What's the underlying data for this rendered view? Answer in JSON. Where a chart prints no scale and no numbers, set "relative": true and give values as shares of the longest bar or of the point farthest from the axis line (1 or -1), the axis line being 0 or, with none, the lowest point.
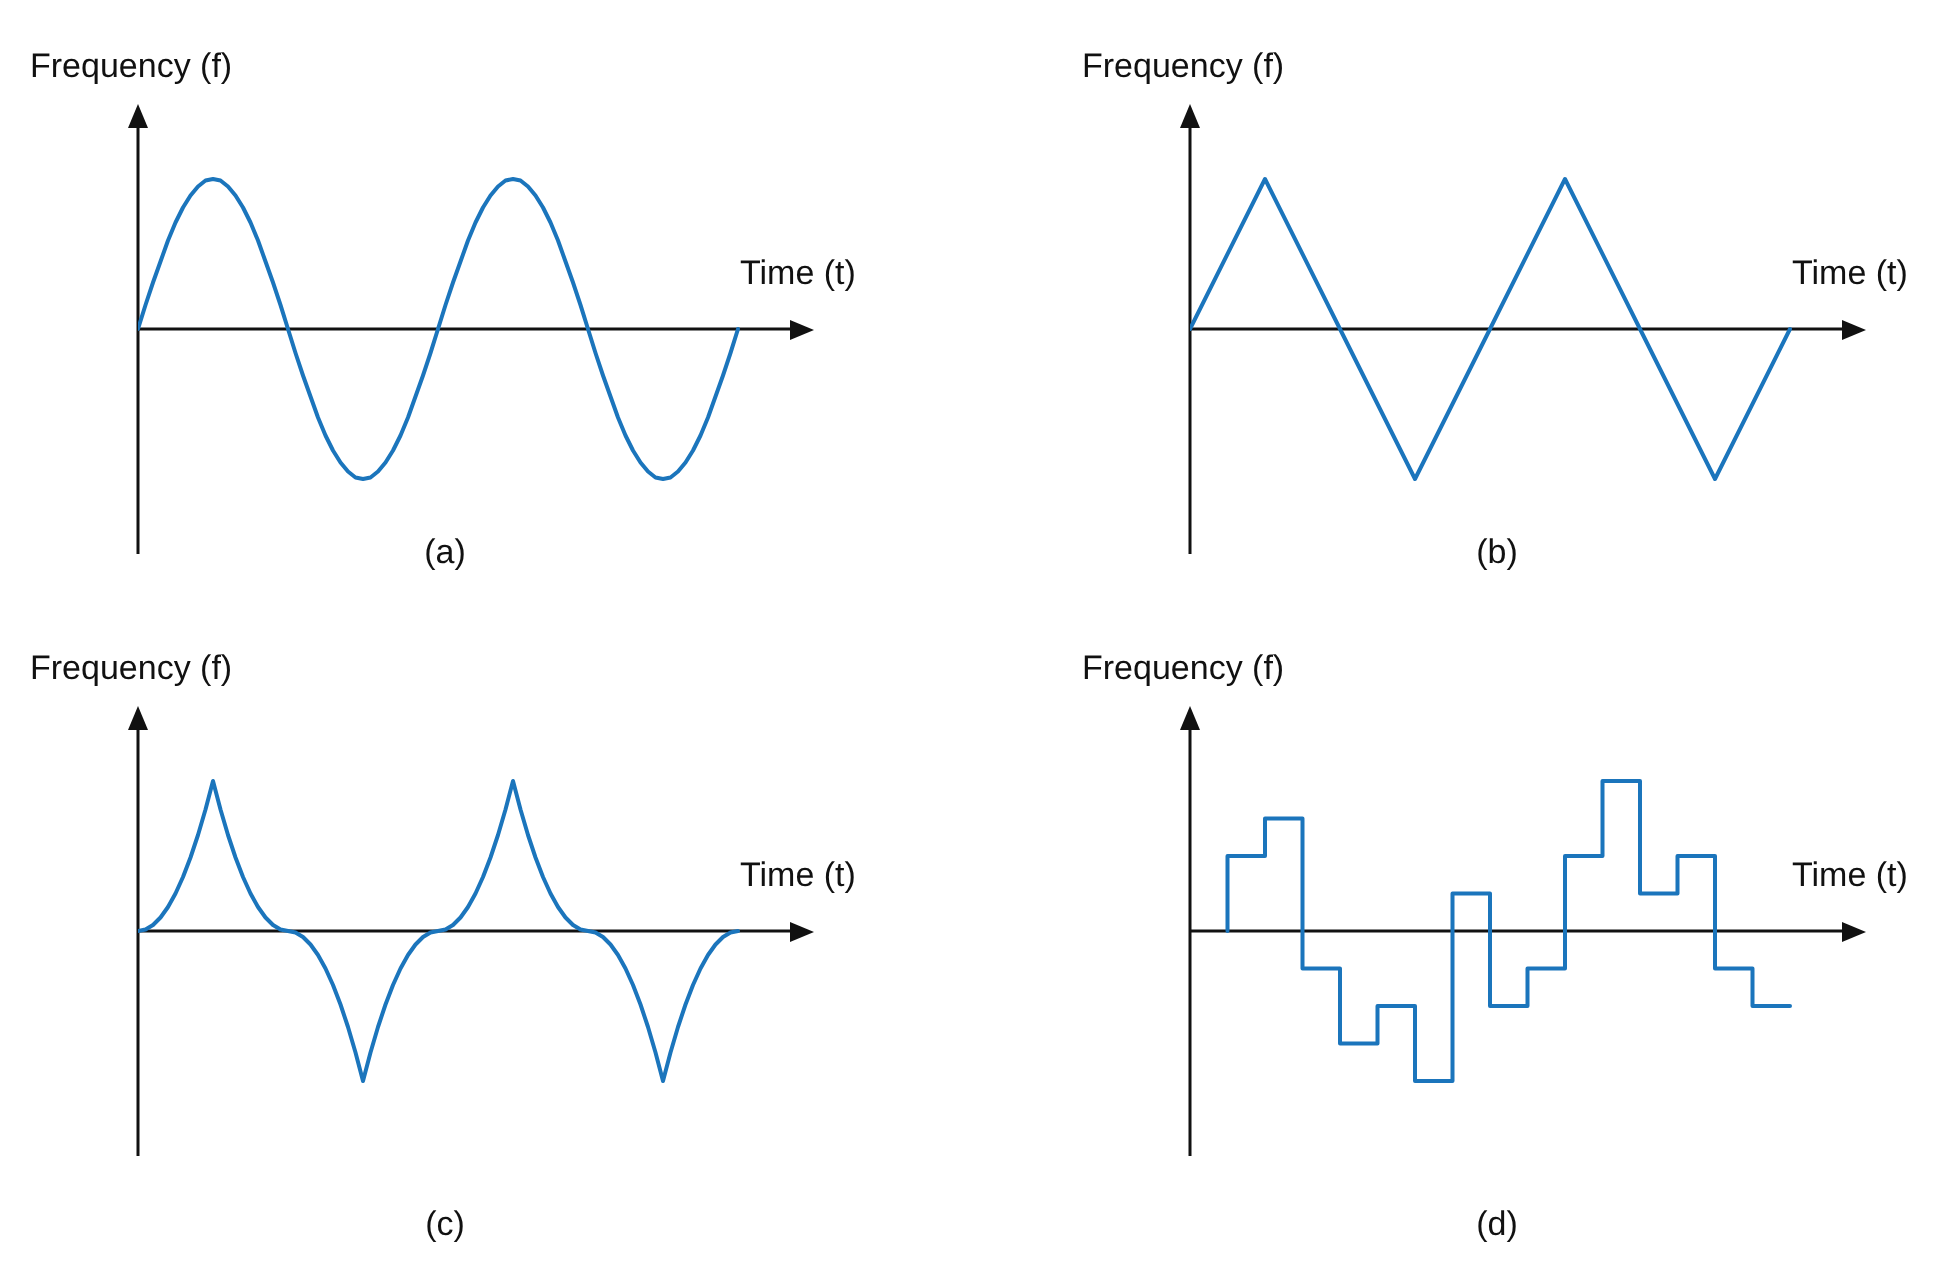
{
  "chart_data": [
    {
      "type": "line",
      "relative": true,
      "ylabel": "Frequency (f)",
      "xlabel": "Time (t)",
      "annotations": [
        "(a)"
      ],
      "categories": [
        null,
        null,
        null,
        null,
        null,
        null,
        null,
        null,
        null,
        null,
        null,
        null,
        null,
        null,
        null,
        null,
        null,
        null,
        null,
        null,
        null,
        null,
        null,
        null,
        null,
        null,
        null,
        null,
        null,
        null,
        null,
        null,
        null,
        null,
        null,
        null,
        null,
        null,
        null,
        null,
        null,
        null,
        null,
        null,
        null,
        null,
        null,
        null,
        null,
        null,
        null,
        null,
        null,
        null,
        null,
        null,
        null,
        null,
        null,
        null,
        null,
        null,
        null,
        null,
        null,
        null,
        null,
        null,
        null,
        null,
        null,
        null,
        null,
        null,
        null,
        null,
        null,
        null,
        null,
        null,
        null
      ],
      "series": [
        {
          "color": "#1b75bc",
          "values": [
            0,
            0.16,
            0.31,
            0.45,
            0.59,
            0.71,
            0.81,
            0.89,
            0.95,
            0.99,
            1,
            0.99,
            0.95,
            0.89,
            0.81,
            0.71,
            0.59,
            0.45,
            0.31,
            0.16,
            0,
            -0.16,
            -0.31,
            -0.45,
            -0.59,
            -0.71,
            -0.81,
            -0.89,
            -0.95,
            -0.99,
            -1,
            -0.99,
            -0.95,
            -0.89,
            -0.81,
            -0.71,
            -0.59,
            -0.45,
            -0.31,
            -0.16,
            0,
            0.16,
            0.31,
            0.45,
            0.59,
            0.71,
            0.81,
            0.89,
            0.95,
            0.99,
            1,
            0.99,
            0.95,
            0.89,
            0.81,
            0.71,
            0.59,
            0.45,
            0.31,
            0.16,
            0,
            -0.16,
            -0.31,
            -0.45,
            -0.59,
            -0.71,
            -0.81,
            -0.89,
            -0.95,
            -0.99,
            -1,
            -0.99,
            -0.95,
            -0.89,
            -0.81,
            -0.71,
            -0.59,
            -0.45,
            -0.31,
            -0.16,
            0
          ]
        }
      ]
    },
    {
      "type": "line",
      "relative": true,
      "ylabel": "Frequency (f)",
      "xlabel": "Time (t)",
      "annotations": [
        "(b)"
      ],
      "categories": [
        null,
        null,
        null,
        null,
        null,
        null,
        null,
        null,
        null
      ],
      "series": [
        {
          "color": "#1b75bc",
          "values": [
            0,
            1,
            0,
            -1,
            0,
            1,
            0,
            -1,
            0
          ]
        }
      ]
    },
    {
      "type": "line",
      "relative": true,
      "ylabel": "Frequency (f)",
      "xlabel": "Time (t)",
      "annotations": [
        "(c)"
      ],
      "categories": [
        null,
        null,
        null,
        null,
        null,
        null,
        null,
        null,
        null,
        null,
        null,
        null,
        null,
        null,
        null,
        null,
        null,
        null,
        null,
        null,
        null,
        null,
        null,
        null,
        null,
        null,
        null,
        null,
        null,
        null,
        null,
        null,
        null,
        null,
        null,
        null,
        null,
        null,
        null,
        null,
        null,
        null,
        null,
        null,
        null,
        null,
        null,
        null,
        null,
        null,
        null,
        null,
        null,
        null,
        null,
        null,
        null,
        null,
        null,
        null,
        null,
        null,
        null,
        null,
        null,
        null,
        null,
        null,
        null,
        null,
        null,
        null,
        null,
        null,
        null,
        null,
        null,
        null,
        null,
        null,
        null
      ],
      "series": [
        {
          "color": "#1b75bc",
          "values": [
            0,
            0.01,
            0.04,
            0.09,
            0.16,
            0.25,
            0.36,
            0.49,
            0.64,
            0.81,
            1,
            0.81,
            0.64,
            0.49,
            0.36,
            0.25,
            0.16,
            0.09,
            0.04,
            0.01,
            0,
            -0.01,
            -0.04,
            -0.09,
            -0.16,
            -0.25,
            -0.36,
            -0.49,
            -0.64,
            -0.81,
            -1,
            -0.81,
            -0.64,
            -0.49,
            -0.36,
            -0.25,
            -0.16,
            -0.09,
            -0.04,
            -0.01,
            0,
            0.01,
            0.04,
            0.09,
            0.16,
            0.25,
            0.36,
            0.49,
            0.64,
            0.81,
            1,
            0.81,
            0.64,
            0.49,
            0.36,
            0.25,
            0.16,
            0.09,
            0.04,
            0.01,
            0,
            -0.01,
            -0.04,
            -0.09,
            -0.16,
            -0.25,
            -0.36,
            -0.49,
            -0.64,
            -0.81,
            -1,
            -0.81,
            -0.64,
            -0.49,
            -0.36,
            -0.25,
            -0.16,
            -0.09,
            -0.04,
            -0.01,
            0
          ]
        }
      ]
    },
    {
      "type": "step",
      "relative": true,
      "ylabel": "Frequency (f)",
      "xlabel": "Time (t)",
      "annotations": [
        "(d)"
      ],
      "categories": [
        null,
        null,
        null,
        null,
        null,
        null,
        null,
        null,
        null,
        null,
        null,
        null,
        null,
        null,
        null,
        null
      ],
      "series": [
        {
          "color": "#1b75bc",
          "values": [
            0,
            0.5,
            0.75,
            -0.25,
            -0.75,
            -0.5,
            -1,
            0.25,
            -0.5,
            -0.25,
            0.5,
            1,
            0.25,
            0.5,
            -0.25,
            -0.5
          ]
        }
      ]
    }
  ]
}
